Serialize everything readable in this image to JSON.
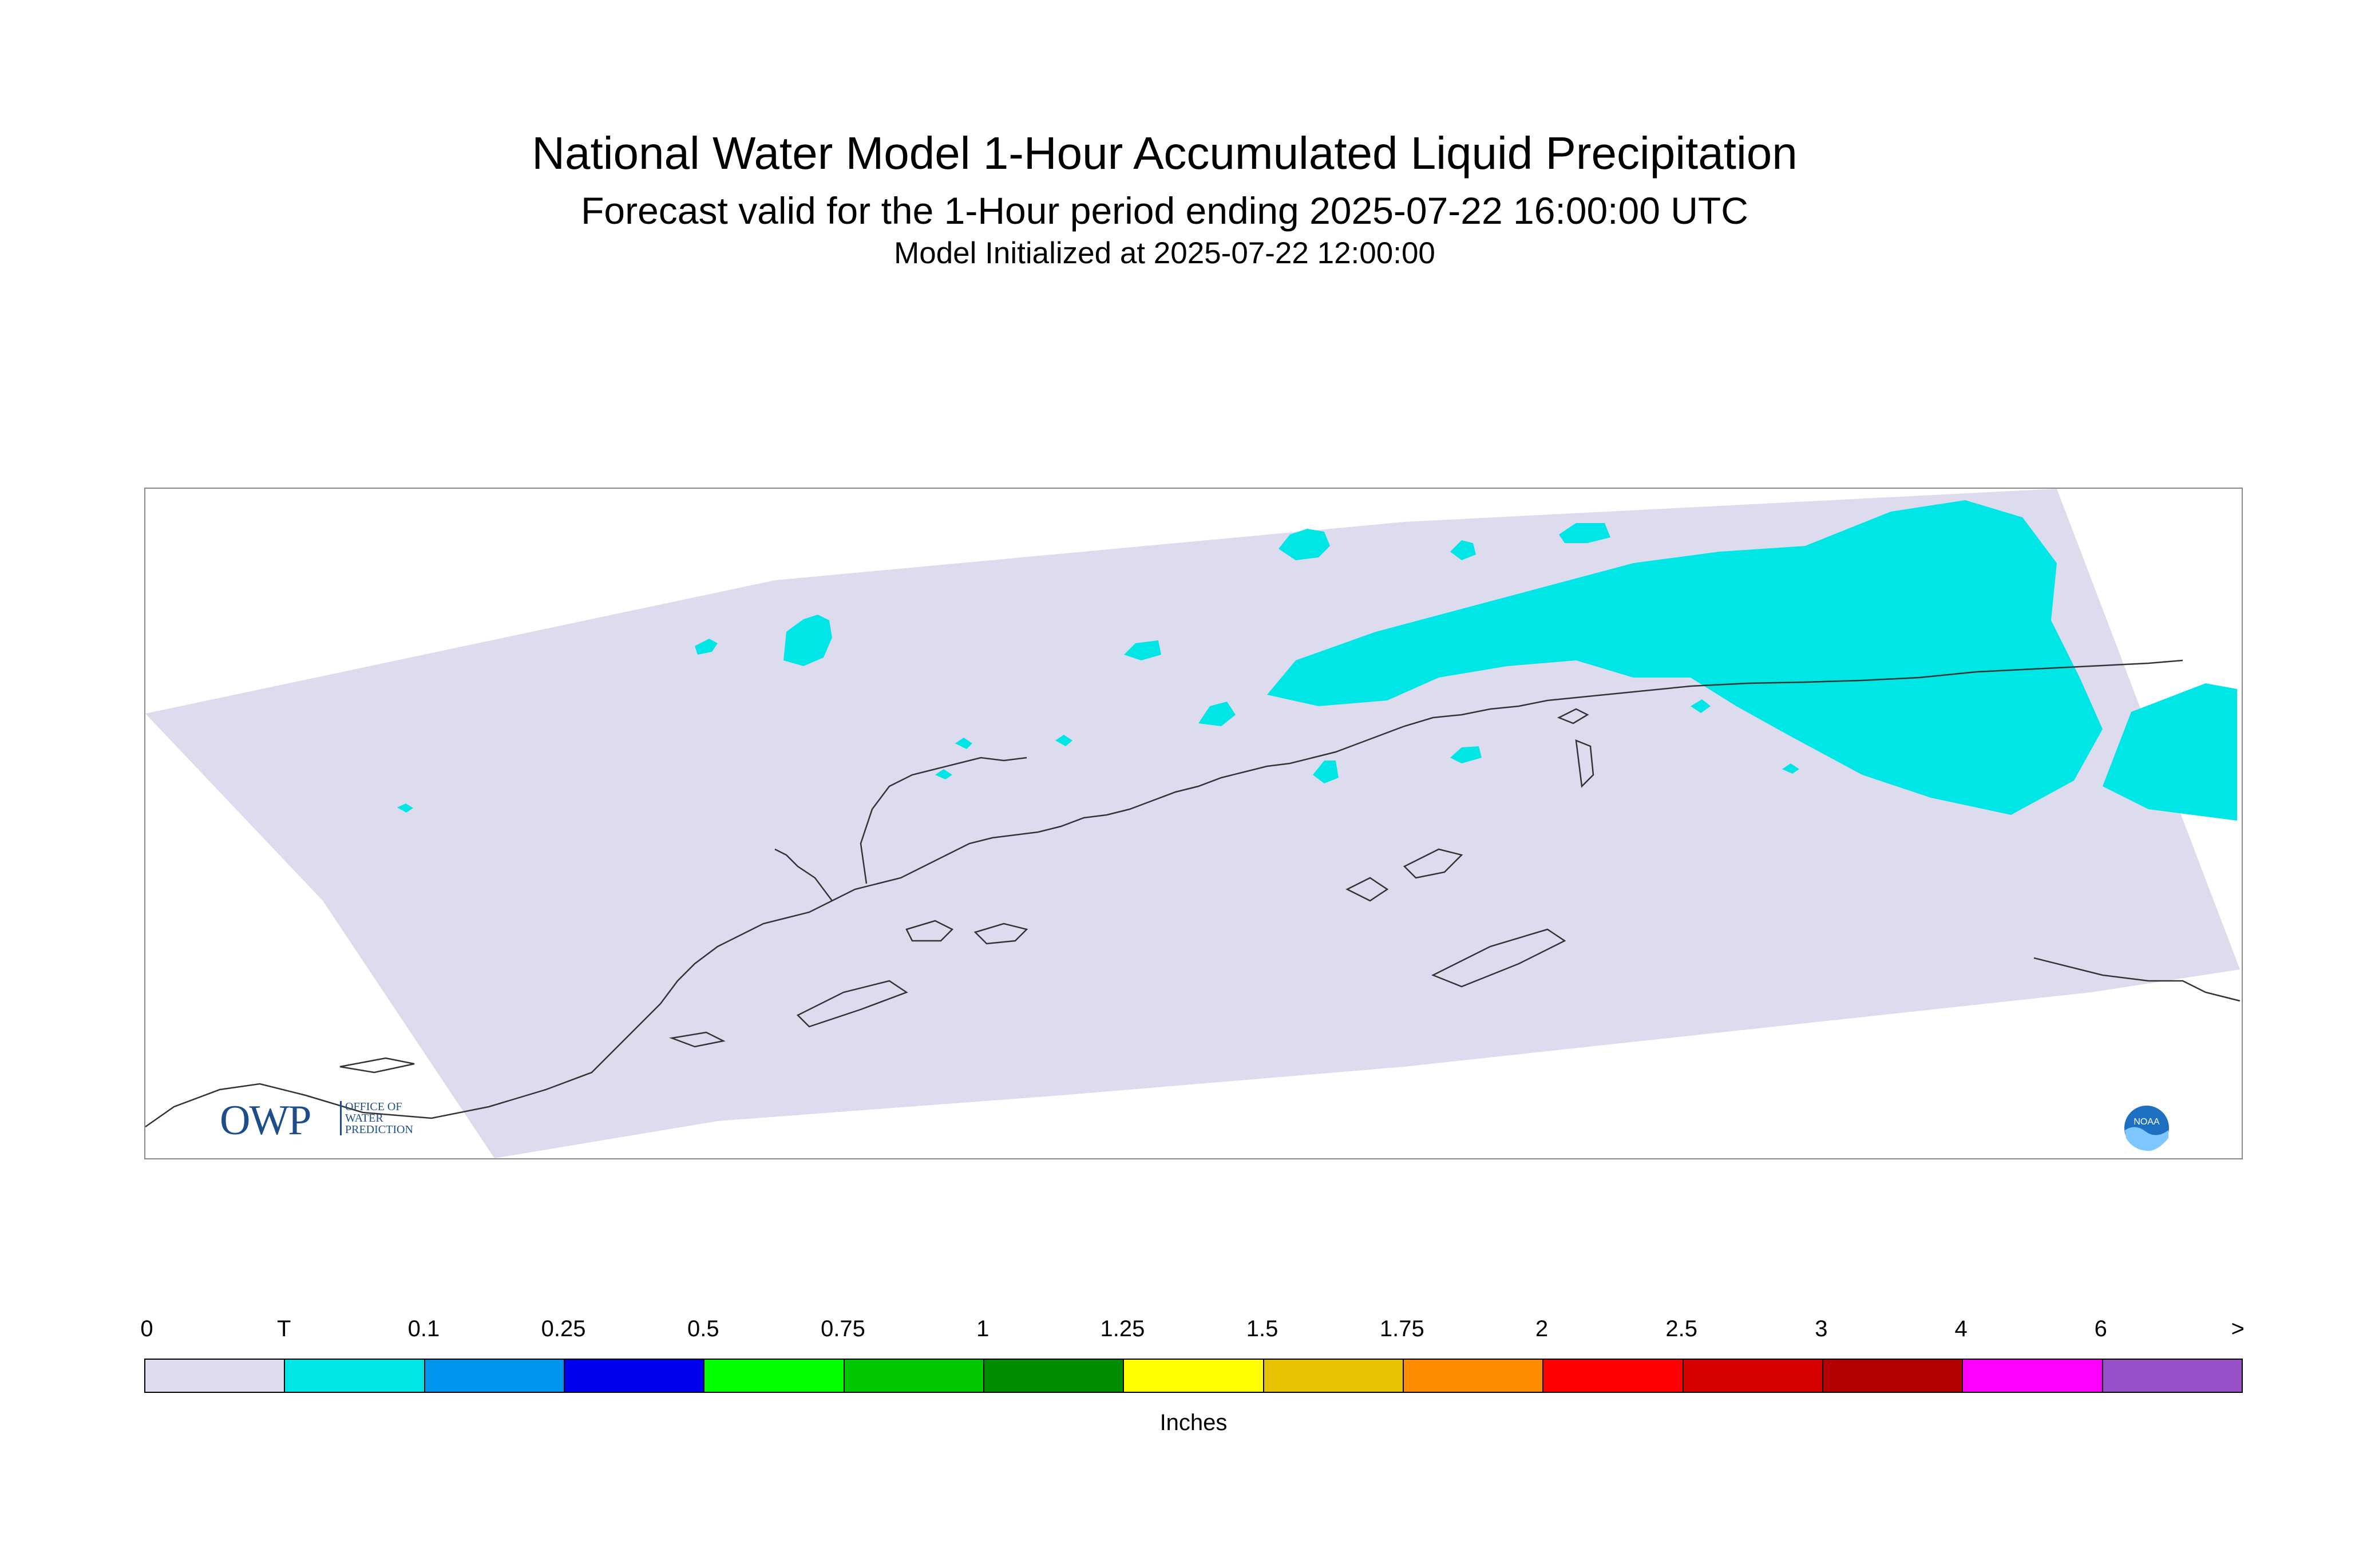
{
  "header": {
    "title": "National Water Model 1-Hour Accumulated Liquid Precipitation",
    "subtitle": "Forecast valid for the 1-Hour period ending 2025-07-22 16:00:00 UTC",
    "init": "Model Initialized at 2025-07-22 12:00:00"
  },
  "map": {
    "domain_fill": "#dcdcee",
    "precip_color": "#00e6e6",
    "coastline_color": "#333333",
    "logos": {
      "owp": {
        "letters": "OWP",
        "lines": [
          "OFFICE OF",
          "WATER",
          "PREDICTION"
        ]
      },
      "noaa": {
        "letters": "NOAA",
        "color": "#1d6fc2"
      }
    }
  },
  "legend": {
    "ticks": [
      "0",
      "T",
      "0.1",
      "0.25",
      "0.5",
      "0.75",
      "1",
      "1.25",
      "1.5",
      "1.75",
      "2",
      "2.5",
      "3",
      "4",
      "6",
      ">"
    ],
    "colors": [
      "#dcdcee",
      "#00e6e6",
      "#0096f0",
      "#0000f0",
      "#00ff00",
      "#00c800",
      "#008c00",
      "#ffff00",
      "#e6c300",
      "#ff8c00",
      "#ff0000",
      "#d70000",
      "#b40000",
      "#ff00ff",
      "#9650c8"
    ],
    "units": "Inches"
  }
}
